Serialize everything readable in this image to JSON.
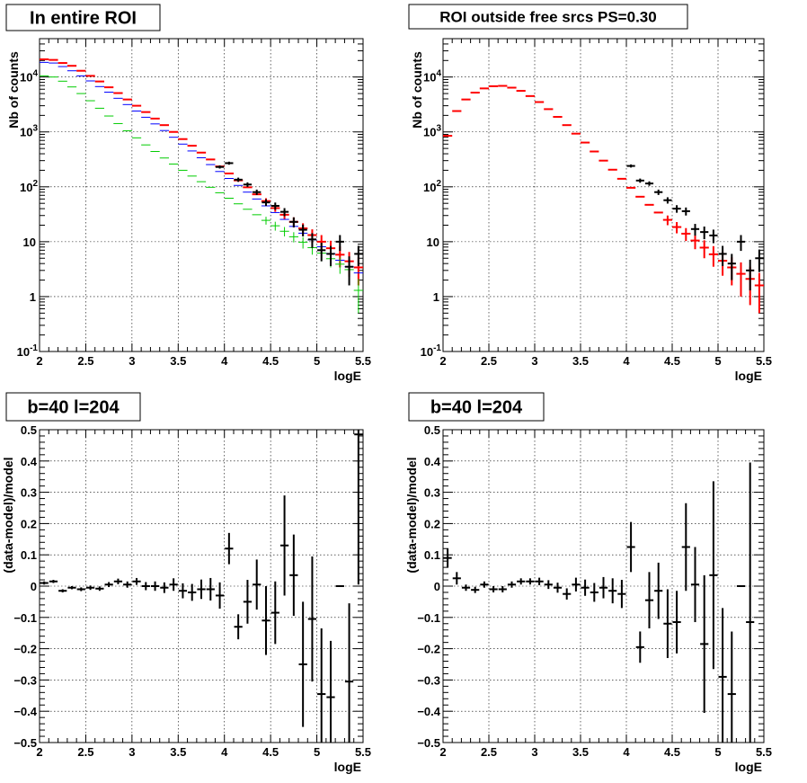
{
  "chart_data": [
    {
      "type": "scatter",
      "title": "In entire ROI",
      "xlabel": "logE",
      "ylabel": "Nb of counts",
      "xlim": [
        2,
        5.5
      ],
      "ylim": [
        0.1,
        50000
      ],
      "yscale": "log",
      "grid": true,
      "x_ticks": [
        "2",
        "2.5",
        "3",
        "3.5",
        "4",
        "4.5",
        "5",
        "5.5"
      ],
      "y_ticks": [
        {
          "base": "10",
          "exp": "-1",
          "v": 0.1
        },
        {
          "base": "1",
          "exp": "",
          "v": 1
        },
        {
          "base": "10",
          "exp": "",
          "v": 10
        },
        {
          "base": "10",
          "exp": "2",
          "v": 100
        },
        {
          "base": "10",
          "exp": "3",
          "v": 1000
        },
        {
          "base": "10",
          "exp": "4",
          "v": 10000
        }
      ],
      "series": [
        {
          "color": "#ff0000",
          "style": "hist",
          "width": 2,
          "x": [
            2.05,
            2.15,
            2.25,
            2.35,
            2.45,
            2.55,
            2.65,
            2.75,
            2.85,
            2.95,
            3.05,
            3.15,
            3.25,
            3.35,
            3.45,
            3.55,
            3.65,
            3.75,
            3.85,
            3.95,
            4.05,
            4.15,
            4.25,
            4.35,
            4.45,
            4.55,
            4.65,
            4.75,
            4.85,
            4.95,
            5.05,
            5.15,
            5.25,
            5.35,
            5.45
          ],
          "y": [
            21000,
            20500,
            18000,
            16000,
            13000,
            10500,
            8300,
            6500,
            5100,
            3900,
            3000,
            2300,
            1750,
            1330,
            1000,
            740,
            560,
            420,
            315,
            235,
            175,
            131,
            98,
            73,
            55,
            41,
            31,
            23,
            17.5,
            13.2,
            10,
            7.6,
            5.8,
            4.4,
            3.4
          ],
          "err": [
            0,
            0,
            0,
            0,
            0,
            0,
            0,
            0,
            0,
            0,
            0,
            0,
            0,
            0,
            0,
            0,
            0,
            0,
            0,
            0,
            0,
            0,
            0,
            0,
            7,
            6,
            5.5,
            4.8,
            4.2,
            3.6,
            3.2,
            2.8,
            2.4,
            2.1,
            1.8
          ]
        },
        {
          "color": "#0000ff",
          "style": "hist",
          "width": 1,
          "x": [
            2.05,
            2.15,
            2.25,
            2.35,
            2.45,
            2.55,
            2.65,
            2.75,
            2.85,
            2.95,
            3.05,
            3.15,
            3.25,
            3.35,
            3.45,
            3.55,
            3.65,
            3.75,
            3.85,
            3.95,
            4.05,
            4.15,
            4.25,
            4.35,
            4.45,
            4.55,
            4.65,
            4.75,
            4.85,
            4.95,
            5.05,
            5.15,
            5.25,
            5.35,
            5.45
          ],
          "y": [
            18500,
            18000,
            15500,
            13000,
            10500,
            8500,
            6700,
            5300,
            4100,
            3150,
            2400,
            1850,
            1400,
            1060,
            800,
            600,
            450,
            338,
            254,
            190,
            142,
            106,
            80,
            60,
            45,
            34,
            25.5,
            19,
            14.3,
            10.8,
            8.1,
            6.1,
            4.6,
            3.5,
            2.7
          ],
          "err": [
            0,
            0,
            0,
            0,
            0,
            0,
            0,
            0,
            0,
            0,
            0,
            0,
            0,
            0,
            0,
            0,
            0,
            0,
            0,
            0,
            0,
            0,
            0,
            0,
            0,
            0,
            0,
            0,
            0,
            0,
            0,
            0,
            0,
            0,
            0
          ]
        },
        {
          "color": "#00cc00",
          "style": "hist",
          "width": 1,
          "x": [
            2.05,
            2.15,
            2.25,
            2.35,
            2.45,
            2.55,
            2.65,
            2.75,
            2.85,
            2.95,
            3.05,
            3.15,
            3.25,
            3.35,
            3.45,
            3.55,
            3.65,
            3.75,
            3.85,
            3.95,
            4.05,
            4.15,
            4.25,
            4.35,
            4.45,
            4.55,
            4.65,
            4.75,
            4.85,
            4.95,
            5.05,
            5.15,
            5.25,
            5.35,
            5.45
          ],
          "y": [
            10500,
            10000,
            8400,
            6600,
            5000,
            3700,
            2700,
            1950,
            1420,
            1050,
            780,
            580,
            440,
            335,
            260,
            200,
            157,
            124,
            98,
            78,
            62,
            49,
            39,
            31,
            24.5,
            19.5,
            15.5,
            12.3,
            9.8,
            7.8,
            6.2,
            4.9,
            3.9,
            3.1,
            1.3
          ],
          "err": [
            0,
            0,
            0,
            0,
            0,
            0,
            0,
            0,
            0,
            0,
            0,
            0,
            0,
            0,
            0,
            0,
            0,
            0,
            0,
            0,
            0,
            0,
            0,
            0,
            4,
            3.6,
            3,
            2.6,
            2.3,
            2,
            1.8,
            1.5,
            1.3,
            1.1,
            0.8
          ]
        },
        {
          "color": "#000000",
          "style": "points",
          "width": 2,
          "x": [
            3.95,
            4.05,
            4.15,
            4.25,
            4.35,
            4.45,
            4.55,
            4.65,
            4.75,
            4.85,
            4.95,
            5.05,
            5.15,
            5.25,
            5.35,
            5.45
          ],
          "y": [
            230,
            270,
            135,
            110,
            80,
            52,
            45,
            35,
            23,
            16.5,
            11,
            7,
            6,
            10,
            3.5,
            6
          ],
          "err": [
            15,
            17,
            12,
            10.5,
            9,
            7.2,
            6.7,
            5.9,
            4.8,
            4,
            3.3,
            2.6,
            2.4,
            3.2,
            1.9,
            2.4
          ]
        }
      ]
    },
    {
      "type": "scatter",
      "title": "ROI outside free srcs PS=0.30",
      "xlabel": "logE",
      "ylabel": "Nb of counts",
      "xlim": [
        2,
        5.5
      ],
      "ylim": [
        0.1,
        50000
      ],
      "yscale": "log",
      "grid": true,
      "x_ticks": [
        "2",
        "2.5",
        "3",
        "3.5",
        "4",
        "4.5",
        "5",
        "5.5"
      ],
      "y_ticks": [
        {
          "base": "10",
          "exp": "-1",
          "v": 0.1
        },
        {
          "base": "1",
          "exp": "",
          "v": 1
        },
        {
          "base": "10",
          "exp": "",
          "v": 10
        },
        {
          "base": "10",
          "exp": "2",
          "v": 100
        },
        {
          "base": "10",
          "exp": "3",
          "v": 1000
        },
        {
          "base": "10",
          "exp": "4",
          "v": 10000
        }
      ],
      "series": [
        {
          "color": "#ff0000",
          "style": "hist",
          "width": 2,
          "x": [
            2.05,
            2.15,
            2.25,
            2.35,
            2.45,
            2.55,
            2.65,
            2.75,
            2.85,
            2.95,
            3.05,
            3.15,
            3.25,
            3.35,
            3.45,
            3.55,
            3.65,
            3.75,
            3.85,
            3.95,
            4.05,
            4.15,
            4.25,
            4.35,
            4.45,
            4.55,
            4.65,
            4.75,
            4.85,
            4.95,
            5.05,
            5.15,
            5.25,
            5.35,
            5.45
          ],
          "y": [
            850,
            2400,
            3900,
            5200,
            6200,
            6800,
            6900,
            6400,
            5600,
            4500,
            3500,
            2600,
            1880,
            1330,
            930,
            640,
            440,
            300,
            205,
            140,
            96,
            66,
            47,
            34,
            25,
            18.5,
            14,
            10.5,
            7.8,
            5.9,
            4.5,
            3.4,
            2.6,
            2.1,
            1.6
          ],
          "err": [
            0,
            0,
            0,
            0,
            0,
            0,
            0,
            0,
            0,
            0,
            0,
            0,
            0,
            0,
            0,
            0,
            0,
            0,
            0,
            0,
            0,
            0,
            0,
            0,
            5,
            4.3,
            3.7,
            3.2,
            2.8,
            2.4,
            2.1,
            1.8,
            1.6,
            1.4,
            1.1
          ]
        },
        {
          "color": "#000000",
          "style": "points",
          "width": 2,
          "x": [
            4.05,
            4.15,
            4.25,
            4.35,
            4.45,
            4.55,
            4.65,
            4.75,
            4.85,
            4.95,
            5.05,
            5.15,
            5.25,
            5.35,
            5.45
          ],
          "y": [
            240,
            130,
            115,
            80,
            57,
            40,
            36,
            17,
            15,
            13,
            6,
            4,
            10,
            3,
            5
          ],
          "err": [
            15.5,
            11.4,
            10.7,
            9,
            7.5,
            6.3,
            6,
            4.1,
            3.9,
            3.6,
            2.4,
            2,
            3.2,
            1.7,
            2.2
          ]
        }
      ]
    },
    {
      "type": "scatter",
      "title": "b=40 l=204",
      "xlabel": "logE",
      "ylabel": "(data-model)/model",
      "xlim": [
        2,
        5.5
      ],
      "ylim": [
        -0.5,
        0.5
      ],
      "yscale": "linear",
      "grid": true,
      "x_ticks": [
        "2",
        "2.5",
        "3",
        "3.5",
        "4",
        "4.5",
        "5",
        "5.5"
      ],
      "y_ticks": [
        "−0.5",
        "−0.4",
        "−0.3",
        "−0.2",
        "−0.1",
        "0",
        "0.1",
        "0.2",
        "0.3",
        "0.4",
        "0.5"
      ],
      "series": [
        {
          "color": "#000000",
          "style": "points",
          "width": 2,
          "x": [
            2.05,
            2.15,
            2.25,
            2.35,
            2.45,
            2.55,
            2.65,
            2.75,
            2.85,
            2.95,
            3.05,
            3.15,
            3.25,
            3.35,
            3.45,
            3.55,
            3.65,
            3.75,
            3.85,
            3.95,
            4.05,
            4.15,
            4.25,
            4.35,
            4.45,
            4.55,
            4.65,
            4.75,
            4.85,
            4.95,
            5.05,
            5.15,
            5.25,
            5.35,
            5.45
          ],
          "y": [
            0.01,
            0.015,
            -0.015,
            -0.005,
            -0.01,
            -0.005,
            -0.008,
            0.005,
            0.015,
            0.005,
            0.015,
            0,
            0.0,
            -0.005,
            0.005,
            -0.015,
            -0.02,
            -0.01,
            -0.01,
            -0.03,
            0.12,
            -0.13,
            -0.05,
            0.005,
            -0.11,
            -0.085,
            0.13,
            0.035,
            -0.25,
            -0.105,
            -0.345,
            -0.355,
            0,
            -0.305,
            0.485
          ],
          "err": [
            0.005,
            0.005,
            0.005,
            0.005,
            0.006,
            0.007,
            0.007,
            0.008,
            0.009,
            0.01,
            0.011,
            0.013,
            0.015,
            0.017,
            0.02,
            0.024,
            0.027,
            0.031,
            0.036,
            0.042,
            0.05,
            0.04,
            0.07,
            0.08,
            0.11,
            0.1,
            0.16,
            0.13,
            0.2,
            0.2,
            0.21,
            0.18,
            0,
            0.25,
            0.48
          ]
        }
      ]
    },
    {
      "type": "scatter",
      "title": "b=40 l=204",
      "xlabel": "logE",
      "ylabel": "(data-model)/model",
      "xlim": [
        2,
        5.5
      ],
      "ylim": [
        -0.5,
        0.5
      ],
      "yscale": "linear",
      "grid": true,
      "x_ticks": [
        "2",
        "2.5",
        "3",
        "3.5",
        "4",
        "4.5",
        "5",
        "5.5"
      ],
      "y_ticks": [
        "−0.5",
        "−0.4",
        "−0.3",
        "−0.2",
        "−0.1",
        "0",
        "0.1",
        "0.2",
        "0.3",
        "0.4",
        "0.5"
      ],
      "series": [
        {
          "color": "#000000",
          "style": "points",
          "width": 2,
          "x": [
            2.05,
            2.15,
            2.25,
            2.35,
            2.45,
            2.55,
            2.65,
            2.75,
            2.85,
            2.95,
            3.05,
            3.15,
            3.25,
            3.35,
            3.45,
            3.55,
            3.65,
            3.75,
            3.85,
            3.95,
            4.05,
            4.15,
            4.25,
            4.35,
            4.45,
            4.55,
            4.65,
            4.75,
            4.85,
            4.95,
            5.05,
            5.15,
            5.25,
            5.35
          ],
          "y": [
            0.09,
            0.025,
            -0.005,
            -0.012,
            0.005,
            -0.01,
            -0.01,
            0.005,
            0.015,
            0.015,
            0.015,
            0.005,
            -0.005,
            -0.025,
            0.005,
            -0.005,
            -0.02,
            -0.005,
            -0.015,
            -0.025,
            0.125,
            -0.195,
            -0.045,
            -0.015,
            -0.12,
            -0.115,
            0.125,
            0.005,
            -0.185,
            0.035,
            -0.29,
            -0.345,
            0,
            -0.115
          ],
          "err": [
            0.03,
            0.02,
            0.01,
            0.01,
            0.01,
            0.01,
            0.01,
            0.01,
            0.01,
            0.01,
            0.012,
            0.014,
            0.016,
            0.018,
            0.022,
            0.026,
            0.03,
            0.034,
            0.04,
            0.045,
            0.08,
            0.05,
            0.09,
            0.09,
            0.11,
            0.1,
            0.14,
            0.12,
            0.22,
            0.3,
            0.22,
            0.2,
            0,
            0.51
          ]
        }
      ]
    }
  ]
}
